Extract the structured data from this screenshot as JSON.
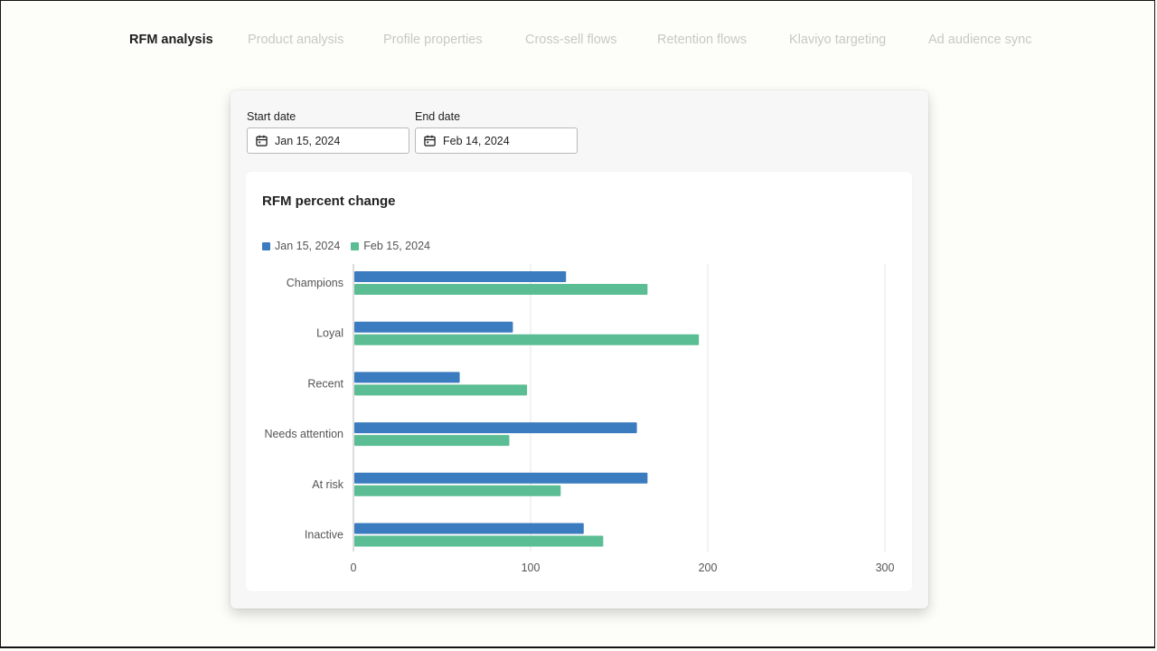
{
  "tabs": [
    {
      "label": "RFM analysis",
      "active": true
    },
    {
      "label": "Product analysis",
      "active": false
    },
    {
      "label": "Profile properties",
      "active": false
    },
    {
      "label": "Cross-sell flows",
      "active": false
    },
    {
      "label": "Retention flows",
      "active": false
    },
    {
      "label": "Klaviyo targeting",
      "active": false
    },
    {
      "label": "Ad audience sync",
      "active": false
    }
  ],
  "filters": {
    "start_date": {
      "label": "Start date",
      "value": "Jan 15, 2024",
      "icon": "calendar-icon"
    },
    "end_date": {
      "label": "End date",
      "value": "Feb 14, 2024",
      "icon": "calendar-icon"
    }
  },
  "chart_data": {
    "type": "bar",
    "orientation": "horizontal",
    "title": "RFM percent change",
    "categories": [
      "Champions",
      "Loyal",
      "Recent",
      "Needs attention",
      "At risk",
      "Inactive"
    ],
    "series": [
      {
        "name": "Jan 15, 2024",
        "color": "#3b7bbf",
        "values": [
          120,
          90,
          60,
          160,
          166,
          130
        ]
      },
      {
        "name": "Feb 15, 2024",
        "color": "#5bbd94",
        "values": [
          166,
          195,
          98,
          88,
          117,
          141
        ]
      }
    ],
    "xlim": [
      0,
      300
    ],
    "xticks": [
      0,
      100,
      200,
      300
    ],
    "grid": true,
    "legend_position": "top-left"
  }
}
